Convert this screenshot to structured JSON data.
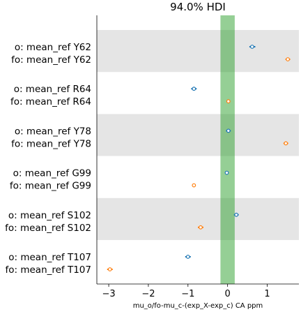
{
  "chart_data": {
    "type": "scatter",
    "title": "94.0% HDI",
    "xlabel": "mu_o/fo-mu_c-(exp_X-exp_c) CA ppm",
    "xlim": [
      -3.3,
      1.8
    ],
    "xticks": [
      {
        "value": -3,
        "label": "−3"
      },
      {
        "value": -2,
        "label": "−2"
      },
      {
        "value": -1,
        "label": "−1"
      },
      {
        "value": 0,
        "label": "0"
      },
      {
        "value": 1,
        "label": "1"
      }
    ],
    "rope": [
      -0.18,
      0.18
    ],
    "grid": false,
    "colors": {
      "o": "#1f77b4",
      "fo": "#ff7f0e",
      "band": "#e5e5e5",
      "rope": "#2ca02c"
    },
    "groups": [
      {
        "rows": [
          {
            "label": "o: mean_ref Y62",
            "series": "o",
            "value": 0.62,
            "hdi": [
              0.55,
              0.7
            ]
          },
          {
            "label": "fo: mean_ref Y62",
            "series": "fo",
            "value": 1.52,
            "hdi": [
              1.46,
              1.58
            ]
          }
        ]
      },
      {
        "rows": [
          {
            "label": "o: mean_ref R64",
            "series": "o",
            "value": -0.85,
            "hdi": [
              -0.92,
              -0.78
            ]
          },
          {
            "label": "fo: mean_ref R64",
            "series": "fo",
            "value": 0.02,
            "hdi": [
              -0.01,
              0.05
            ]
          }
        ]
      },
      {
        "rows": [
          {
            "label": "o: mean_ref Y78",
            "series": "o",
            "value": 0.02,
            "hdi": [
              -0.04,
              0.08
            ]
          },
          {
            "label": "fo: mean_ref Y78",
            "series": "fo",
            "value": 1.47,
            "hdi": [
              1.41,
              1.53
            ]
          }
        ]
      },
      {
        "rows": [
          {
            "label": "o: mean_ref G99",
            "series": "o",
            "value": -0.02,
            "hdi": [
              -0.05,
              0.01
            ]
          },
          {
            "label": "fo: mean_ref G99",
            "series": "fo",
            "value": -0.85,
            "hdi": [
              -0.89,
              -0.81
            ]
          }
        ]
      },
      {
        "rows": [
          {
            "label": "o: mean_ref S102",
            "series": "o",
            "value": 0.22,
            "hdi": [
              0.16,
              0.28
            ]
          },
          {
            "label": "fo: mean_ref S102",
            "series": "fo",
            "value": -0.68,
            "hdi": [
              -0.75,
              -0.61
            ]
          }
        ]
      },
      {
        "rows": [
          {
            "label": "o: mean_ref T107",
            "series": "o",
            "value": -1.0,
            "hdi": [
              -1.07,
              -0.93
            ]
          },
          {
            "label": "fo: mean_ref T107",
            "series": "fo",
            "value": -2.97,
            "hdi": [
              -3.04,
              -2.9
            ]
          }
        ]
      }
    ]
  }
}
